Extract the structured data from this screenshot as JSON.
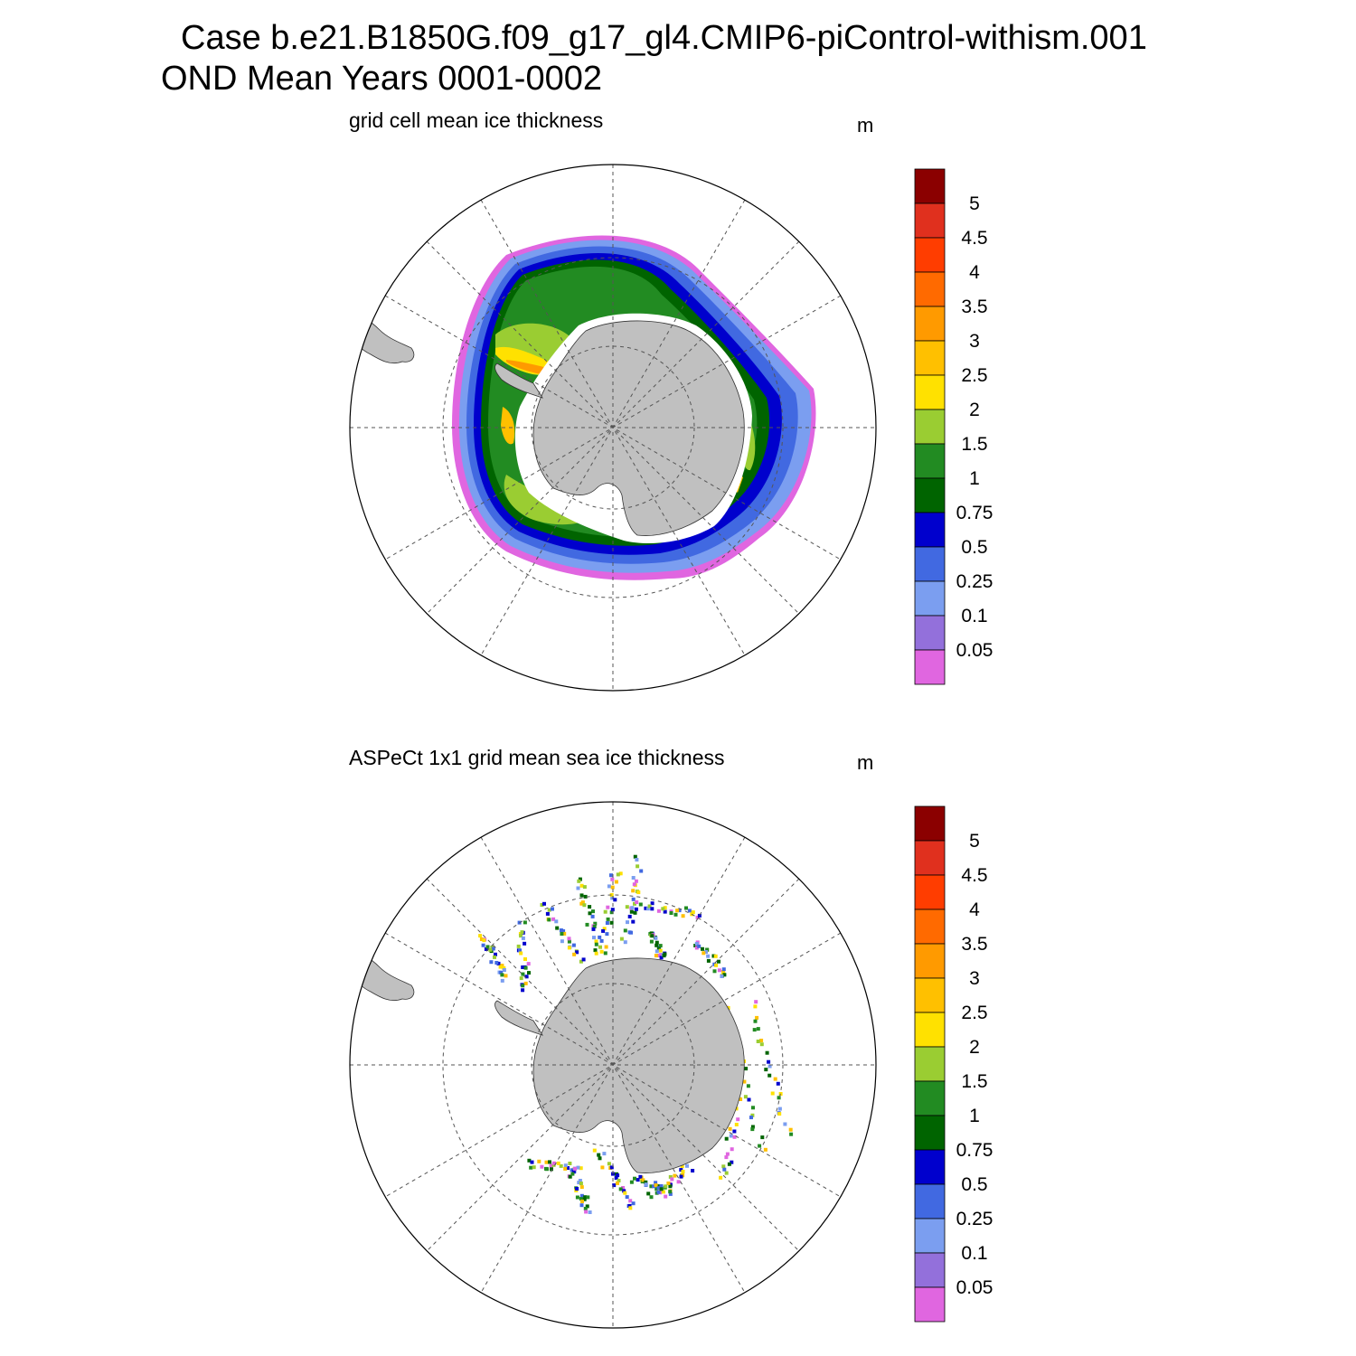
{
  "title": {
    "line1": "Case b.e21.B1850G.f09_g17_gl4.CMIP6-piControl-withism.001",
    "line2": "OND Mean   Years 0001-0002"
  },
  "panels": [
    {
      "id": "model",
      "title": "grid cell mean ice thickness",
      "units": "m"
    },
    {
      "id": "obs",
      "title": "ASPeCt 1x1 grid mean sea ice thickness",
      "units": "m"
    }
  ],
  "colorbar": {
    "labels": [
      "5",
      "4.5",
      "4",
      "3.5",
      "3",
      "2.5",
      "2",
      "1.5",
      "1",
      "0.75",
      "0.5",
      "0.25",
      "0.1",
      "0.05"
    ],
    "colors": [
      "#8b0000",
      "#e0301e",
      "#ff3d00",
      "#ff6a00",
      "#ff9a00",
      "#ffc000",
      "#ffe100",
      "#9acd32",
      "#228b22",
      "#006400",
      "#0000cd",
      "#4169e1",
      "#7b9ef0",
      "#9370db",
      "#e066e0"
    ]
  },
  "colors": {
    "land": "#c0c0c0",
    "grid_line": "#555555"
  }
}
